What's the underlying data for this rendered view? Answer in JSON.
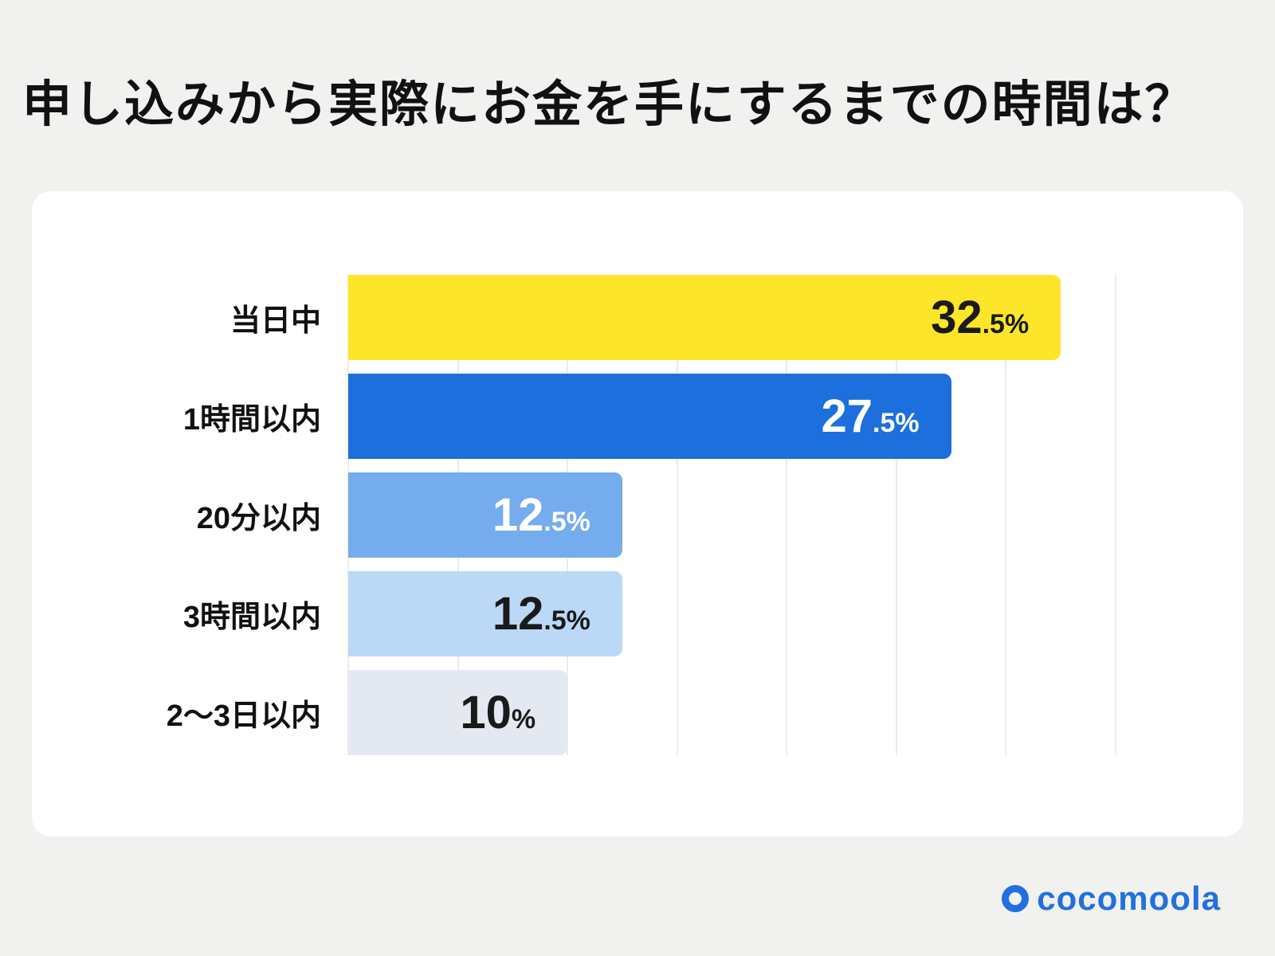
{
  "page": {
    "title": "申し込みから実際にお金を手にするまでの時間は？",
    "brand": "cocomoola"
  },
  "chart_data": {
    "type": "bar",
    "orientation": "horizontal",
    "title": "申し込みから実際にお金を手にするまでの時間は？",
    "categories": [
      "当日中",
      "1時間以内",
      "20分以内",
      "3時間以内",
      "2〜3日以内"
    ],
    "values": [
      32.5,
      27.5,
      12.5,
      12.5,
      10
    ],
    "value_labels": [
      {
        "main": "32",
        "suffix": ".5%"
      },
      {
        "main": "27",
        "suffix": ".5%"
      },
      {
        "main": "12",
        "suffix": ".5%"
      },
      {
        "main": "12",
        "suffix": ".5%"
      },
      {
        "main": "10",
        "suffix": "%"
      }
    ],
    "bar_colors": [
      "#fde62a",
      "#1c6fdc",
      "#74aced",
      "#bcd8f7",
      "#e4e8f0"
    ],
    "value_text_colors": [
      "#1a1a1a",
      "#ffffff",
      "#ffffff",
      "#1a1a1a",
      "#1a1a1a"
    ],
    "xlabel": "",
    "ylabel": "",
    "xlim": [
      0,
      35
    ],
    "gridline_step": 5,
    "grid": "vertical",
    "legend": "none"
  }
}
